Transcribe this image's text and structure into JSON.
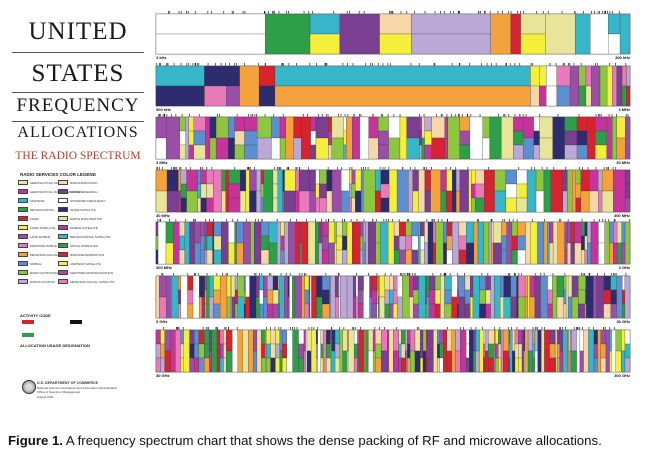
{
  "poster": {
    "title_lines": [
      "UNITED",
      "STATES",
      "FREQUENCY",
      "ALLOCATIONS"
    ],
    "subtitle": "THE RADIO SPECTRUM",
    "legend_title": "RADIO SERVICES COLOR LEGEND",
    "activity_code": "ACTIVITY CODE",
    "allocation_usage": "ALLOCATION USAGE DESIGNATION",
    "department": "U.S. DEPARTMENT OF COMMERCE",
    "agency": "National Telecommunications and Information Administration",
    "office": "Office of Spectrum Management",
    "date": "August 2011"
  },
  "band_labels": {
    "row1": [
      "3 kHz",
      "300 kHz"
    ],
    "row2": [
      "300 kHz",
      "3 MHz"
    ],
    "row3": [
      "3 MHz",
      "30 MHz"
    ],
    "row4": [
      "30 MHz",
      "300 MHz"
    ],
    "row5": [
      "300 MHz",
      "3 GHz"
    ],
    "row6": [
      "3 GHz",
      "30 GHz"
    ],
    "row7": [
      "30 GHz",
      "300 GHz"
    ]
  },
  "colors": {
    "palette": [
      "#e8e59a",
      "#c6339a",
      "#36b6c8",
      "#2e9e49",
      "#d7232f",
      "#f3ef3b",
      "#9b4ea8",
      "#e87ab9",
      "#f4a23b",
      "#5c8fcf",
      "#8dc63f",
      "#bca8d6",
      "#f6d7a7",
      "#7a3f91",
      "#ffffff",
      "#2c2c6e"
    ]
  },
  "legend_items": [
    "AERONAUTICAL MOBILE",
    "AERONAUTICAL RADIONAVIGATION",
    "AMATEUR",
    "BROADCASTING",
    "FIXED",
    "FIXED SATELLITE",
    "LAND MOBILE",
    "MARITIME MOBILE",
    "METEOROLOGICAL",
    "MOBILE",
    "RADIO ASTRONOMY",
    "RADIOLOCATION",
    "RADIONAVIGATION",
    "SPACE RESEARCH",
    "STANDARD FREQUENCY",
    "INTER-SATELLITE",
    "EARTH EXPLORATION",
    "MOBILE SATELLITE",
    "BROADCASTING SATELLITE",
    "SPACE OPERATION",
    "RADIODETERMINATION",
    "AMATEUR SATELLITE",
    "MARITIME RADIONAVIGATION",
    "METEOROLOGICAL SATELLITE"
  ],
  "caption": {
    "label": "Figure 1.",
    "text": " A frequency spectrum chart that shows the dense packing of RF and microwave allocations."
  }
}
